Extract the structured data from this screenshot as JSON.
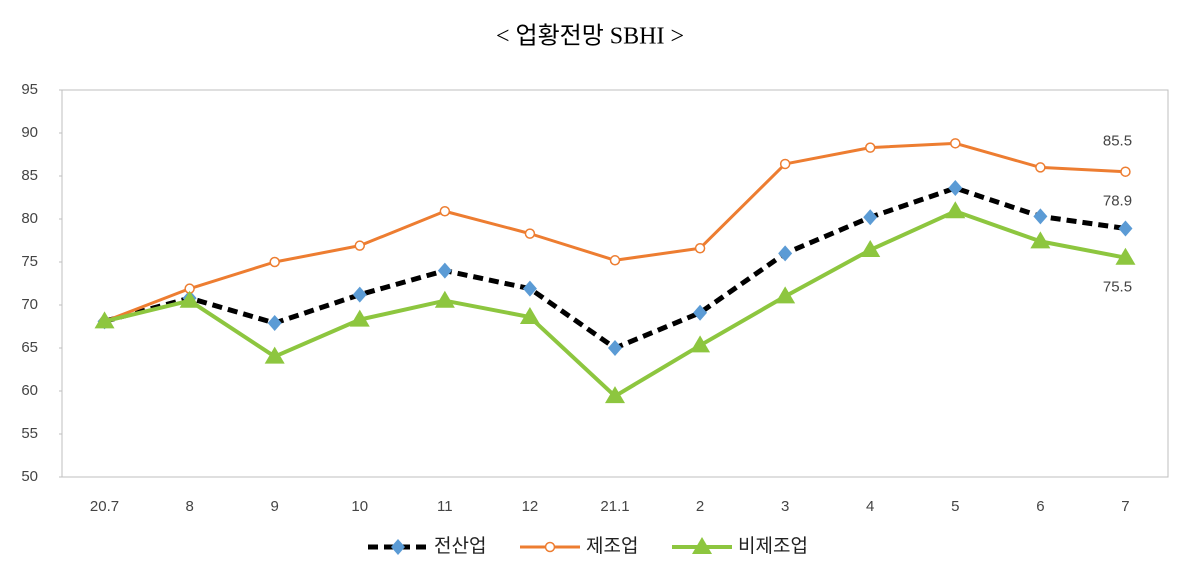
{
  "chart_data": {
    "type": "line",
    "title": "< 업황전망 SBHI >",
    "categories": [
      "20.7",
      "8",
      "9",
      "10",
      "11",
      "12",
      "21.1",
      "2",
      "3",
      "4",
      "5",
      "6",
      "7"
    ],
    "series": [
      {
        "name": "전산업",
        "color": "#000000",
        "marker_color": "#5b9bd5",
        "marker": "diamond",
        "dash": true,
        "values": [
          68.1,
          70.8,
          67.9,
          71.2,
          74.0,
          71.9,
          65.0,
          69.1,
          76.0,
          80.2,
          83.6,
          80.3,
          78.9
        ]
      },
      {
        "name": "제조업",
        "color": "#ed7d31",
        "marker_color": "#ffffff",
        "marker": "circle",
        "dash": false,
        "values": [
          68.1,
          71.9,
          75.0,
          76.9,
          80.9,
          78.3,
          75.2,
          76.6,
          86.4,
          88.3,
          88.8,
          86.0,
          85.5
        ]
      },
      {
        "name": "비제조업",
        "color": "#8dc63f",
        "marker_color": "#8dc63f",
        "marker": "triangle",
        "dash": false,
        "values": [
          68.1,
          70.5,
          64.0,
          68.3,
          70.5,
          68.6,
          59.4,
          65.3,
          71.0,
          76.4,
          80.9,
          77.4,
          75.5
        ]
      }
    ],
    "ylim": [
      50,
      95
    ],
    "yticks": [
      50,
      55,
      60,
      65,
      70,
      75,
      80,
      85,
      90,
      95
    ],
    "grid": false,
    "legend": "bottom"
  }
}
